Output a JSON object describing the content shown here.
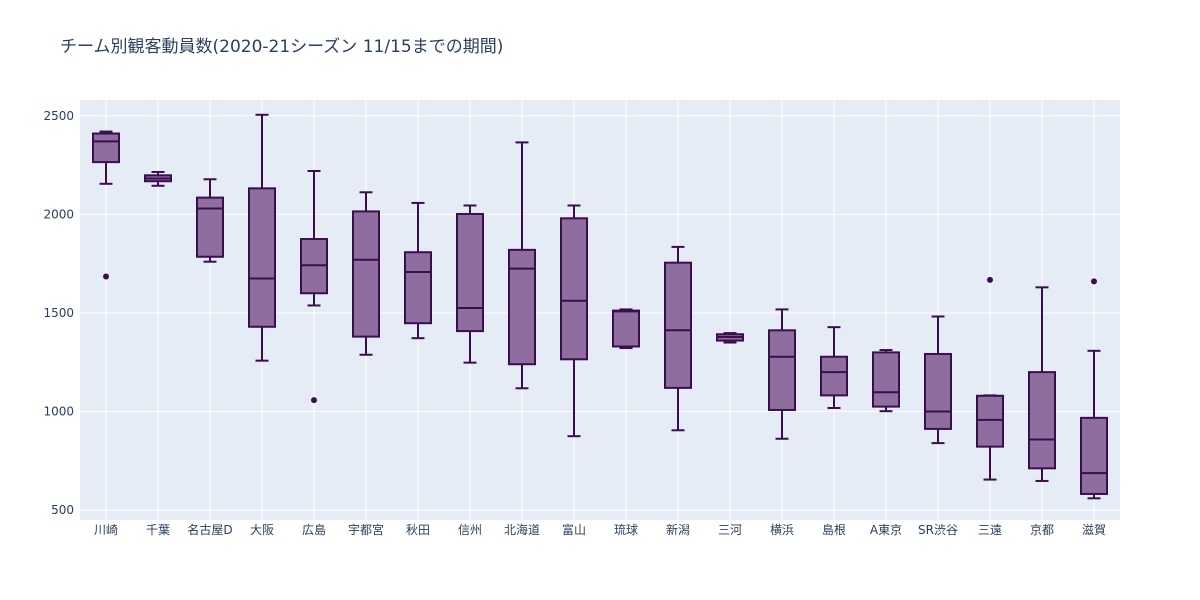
{
  "chart_data": {
    "type": "box",
    "title": "チーム別観客動員数(2020-21シーズン 11/15までの期間)",
    "xlabel": "",
    "ylabel": "",
    "ylim": [
      450,
      2580
    ],
    "yticks": [
      500,
      1000,
      1500,
      2000,
      2500
    ],
    "ytick_labels": [
      "500",
      "1000",
      "1500",
      "2000",
      "2500"
    ],
    "grid": true,
    "legend": "none",
    "colors": {
      "fill": "#8e6d9f",
      "line": "#3c0d4f",
      "plot_bg": "#e5ecf6",
      "grid": "#ffffff",
      "text": "#2a3f5f"
    },
    "categories": [
      "川崎",
      "千葉",
      "名古屋D",
      "大阪",
      "広島",
      "宇都宮",
      "秋田",
      "信州",
      "北海道",
      "富山",
      "琉球",
      "新潟",
      "三河",
      "横浜",
      "島根",
      "A東京",
      "SR渋谷",
      "三遠",
      "京都",
      "滋賀"
    ],
    "boxes": [
      {
        "min": 2155,
        "q1": 2265,
        "median": 2370,
        "q3": 2410,
        "max": 2420,
        "outliers": [
          1685
        ]
      },
      {
        "min": 2145,
        "q1": 2168,
        "median": 2182,
        "q3": 2198,
        "max": 2215,
        "outliers": []
      },
      {
        "min": 1760,
        "q1": 1785,
        "median": 2030,
        "q3": 2085,
        "max": 2178,
        "outliers": []
      },
      {
        "min": 1258,
        "q1": 1430,
        "median": 1675,
        "q3": 2132,
        "max": 2505,
        "outliers": []
      },
      {
        "min": 1538,
        "q1": 1600,
        "median": 1742,
        "q3": 1875,
        "max": 2220,
        "outliers": [
          1058
        ]
      },
      {
        "min": 1288,
        "q1": 1380,
        "median": 1770,
        "q3": 2015,
        "max": 2112,
        "outliers": []
      },
      {
        "min": 1372,
        "q1": 1448,
        "median": 1708,
        "q3": 1808,
        "max": 2058,
        "outliers": []
      },
      {
        "min": 1248,
        "q1": 1408,
        "median": 1525,
        "q3": 2002,
        "max": 2045,
        "outliers": []
      },
      {
        "min": 1118,
        "q1": 1240,
        "median": 1725,
        "q3": 1820,
        "max": 2365,
        "outliers": []
      },
      {
        "min": 875,
        "q1": 1265,
        "median": 1562,
        "q3": 1980,
        "max": 2045,
        "outliers": []
      },
      {
        "min": 1322,
        "q1": 1330,
        "median": 1508,
        "q3": 1512,
        "max": 1518,
        "outliers": []
      },
      {
        "min": 905,
        "q1": 1120,
        "median": 1412,
        "q3": 1755,
        "max": 1835,
        "outliers": []
      },
      {
        "min": 1350,
        "q1": 1360,
        "median": 1378,
        "q3": 1392,
        "max": 1398,
        "outliers": []
      },
      {
        "min": 862,
        "q1": 1008,
        "median": 1278,
        "q3": 1412,
        "max": 1518,
        "outliers": []
      },
      {
        "min": 1018,
        "q1": 1082,
        "median": 1200,
        "q3": 1278,
        "max": 1428,
        "outliers": []
      },
      {
        "min": 1002,
        "q1": 1025,
        "median": 1098,
        "q3": 1300,
        "max": 1312,
        "outliers": []
      },
      {
        "min": 840,
        "q1": 912,
        "median": 1000,
        "q3": 1292,
        "max": 1482,
        "outliers": []
      },
      {
        "min": 655,
        "q1": 822,
        "median": 958,
        "q3": 1080,
        "max": 1082,
        "outliers": [
          1668
        ]
      },
      {
        "min": 648,
        "q1": 712,
        "median": 858,
        "q3": 1200,
        "max": 1630,
        "outliers": []
      },
      {
        "min": 560,
        "q1": 582,
        "median": 688,
        "q3": 968,
        "max": 1308,
        "outliers": [
          1660
        ]
      }
    ]
  }
}
